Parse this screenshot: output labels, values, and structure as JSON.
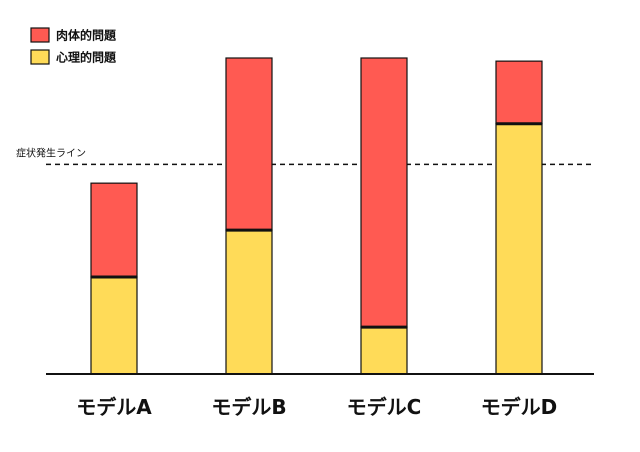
{
  "chart_data": {
    "type": "bar",
    "stacked": true,
    "categories": [
      "モデルA",
      "モデルB",
      "モデルC",
      "モデルD"
    ],
    "series": [
      {
        "name": "心理的問題",
        "color": "#FFDB58",
        "values": [
          31,
          46,
          15,
          80
        ]
      },
      {
        "name": "肉体的問題",
        "color": "#FF5A52",
        "values": [
          30,
          55,
          86,
          20
        ]
      }
    ],
    "threshold": {
      "label": "症状発生ライン",
      "value": 67
    },
    "legend": {
      "position": "top-left"
    },
    "ylim": [
      0,
      101
    ],
    "grid": false,
    "title": "",
    "xlabel": "",
    "ylabel": ""
  }
}
